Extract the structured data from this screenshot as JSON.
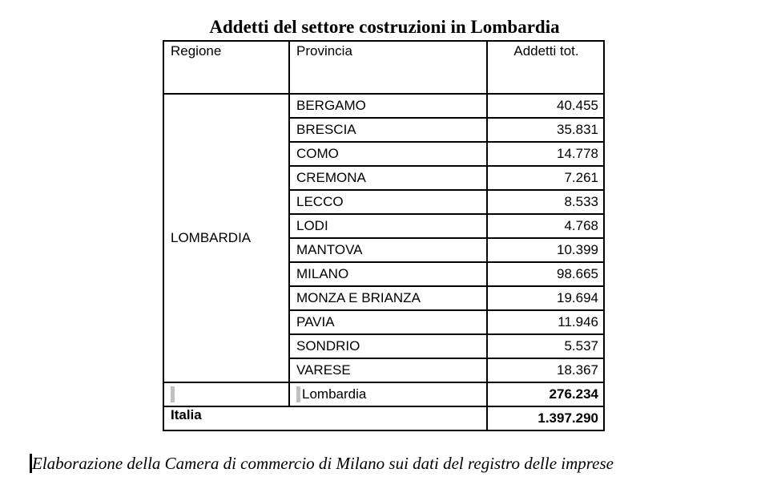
{
  "title": "Addetti del settore costruzioni in Lombardia",
  "table": {
    "headers": {
      "regione": "Regione",
      "provincia": "Provincia",
      "addetti": "Addetti tot."
    },
    "region": "LOMBARDIA",
    "rows": [
      {
        "provincia": "BERGAMO",
        "addetti": "40.455"
      },
      {
        "provincia": "BRESCIA",
        "addetti": "35.831"
      },
      {
        "provincia": "COMO",
        "addetti": "14.778"
      },
      {
        "provincia": "CREMONA",
        "addetti": "7.261"
      },
      {
        "provincia": "LECCO",
        "addetti": "8.533"
      },
      {
        "provincia": "LODI",
        "addetti": "4.768"
      },
      {
        "provincia": "MANTOVA",
        "addetti": "10.399"
      },
      {
        "provincia": "MILANO",
        "addetti": "98.665"
      },
      {
        "provincia": "MONZA E BRIANZA",
        "addetti": "19.694"
      },
      {
        "provincia": "PAVIA",
        "addetti": "11.946"
      },
      {
        "provincia": "SONDRIO",
        "addetti": "5.537"
      },
      {
        "provincia": "VARESE",
        "addetti": "18.367"
      }
    ],
    "subtotal": {
      "label": "Lombardia",
      "value": "276.234"
    },
    "total": {
      "label": "Italia",
      "value": "1.397.290"
    }
  },
  "caption": "Elaborazione della Camera di commercio di Milano sui dati del registro delle imprese"
}
